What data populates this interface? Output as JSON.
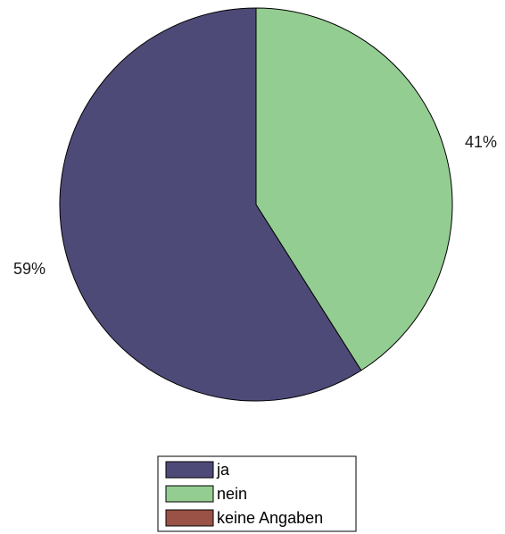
{
  "chart_data": {
    "type": "pie",
    "title": "",
    "categories": [
      "ja",
      "nein",
      "keine Angaben"
    ],
    "values": [
      59,
      41,
      0
    ],
    "labels": [
      "59%",
      "41%",
      ""
    ],
    "colors": [
      "#4e4a78",
      "#94cd92",
      "#9a5246"
    ],
    "start": "top",
    "direction": "counterclockwise",
    "legend": {
      "placement": "bottom-center",
      "entries": [
        "ja",
        "nein",
        "keine Angaben"
      ]
    }
  }
}
